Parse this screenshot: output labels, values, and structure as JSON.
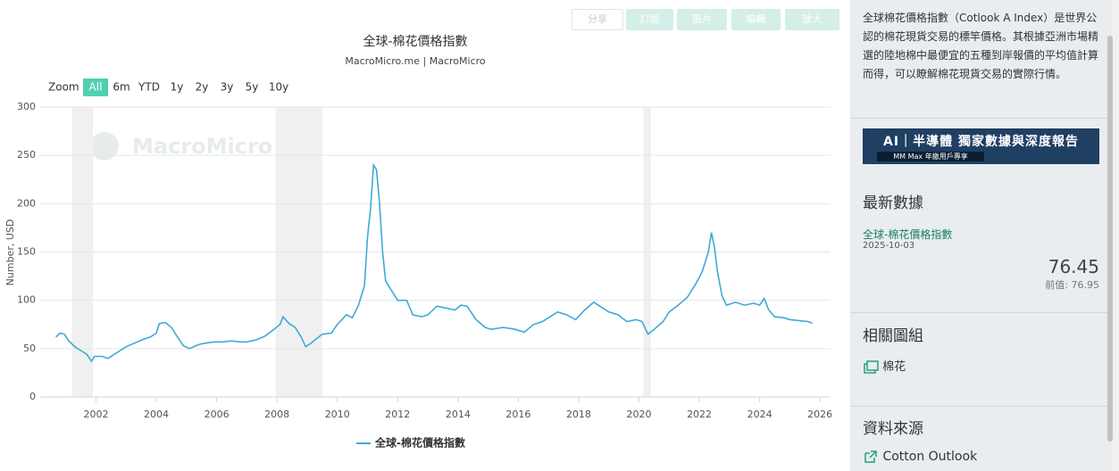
{
  "toolbar": [
    "分享",
    "訂閱",
    "圖片",
    "編輯",
    "放大"
  ],
  "chart_data": {
    "type": "line",
    "title": "全球-棉花價格指數",
    "subtitle": "MacroMicro.me | MacroMicro",
    "watermark": "MacroMicro",
    "range_selector": {
      "label": "Zoom",
      "options": [
        "All",
        "6m",
        "YTD",
        "1y",
        "2y",
        "3y",
        "5y",
        "10y"
      ],
      "active": 0
    },
    "y_label": "Number, USD",
    "xlim": [
      2000.15,
      2026.35
    ],
    "xticks": [
      2002,
      2004,
      2006,
      2008,
      2010,
      2012,
      2014,
      2016,
      2018,
      2020,
      2022,
      2024,
      2026
    ],
    "ylim": [
      0,
      300
    ],
    "yticks": [
      0,
      50,
      100,
      150,
      200,
      250,
      300
    ],
    "grid": true,
    "shaded_ranges": [
      [
        2001.2,
        2001.9
      ],
      [
        2007.95,
        2009.5
      ],
      [
        2020.15,
        2020.4
      ]
    ],
    "x": [
      2000.67,
      2000.8,
      2000.95,
      2001.1,
      2001.3,
      2001.5,
      2001.7,
      2001.85,
      2001.95,
      2002.2,
      2002.4,
      2002.6,
      2002.8,
      2003.0,
      2003.3,
      2003.6,
      2003.8,
      2004.0,
      2004.1,
      2004.3,
      2004.5,
      2004.7,
      2004.9,
      2005.1,
      2005.3,
      2005.5,
      2005.7,
      2005.9,
      2006.2,
      2006.5,
      2006.8,
      2007.0,
      2007.3,
      2007.6,
      2007.9,
      2008.1,
      2008.2,
      2008.4,
      2008.6,
      2008.8,
      2008.95,
      2009.1,
      2009.3,
      2009.5,
      2009.8,
      2010.0,
      2010.3,
      2010.5,
      2010.7,
      2010.9,
      2011.0,
      2011.1,
      2011.2,
      2011.3,
      2011.4,
      2011.5,
      2011.6,
      2011.8,
      2012.0,
      2012.3,
      2012.5,
      2012.8,
      2013.0,
      2013.3,
      2013.6,
      2013.9,
      2014.1,
      2014.3,
      2014.6,
      2014.9,
      2015.1,
      2015.5,
      2015.9,
      2016.2,
      2016.5,
      2016.8,
      2017.0,
      2017.3,
      2017.6,
      2017.9,
      2018.2,
      2018.5,
      2018.8,
      2019.0,
      2019.3,
      2019.6,
      2019.9,
      2020.1,
      2020.3,
      2020.5,
      2020.8,
      2021.0,
      2021.3,
      2021.6,
      2021.9,
      2022.1,
      2022.3,
      2022.4,
      2022.5,
      2022.6,
      2022.75,
      2022.9,
      2023.2,
      2023.5,
      2023.8,
      2024.0,
      2024.15,
      2024.3,
      2024.5,
      2024.8,
      2025.0,
      2025.3,
      2025.6,
      2025.75
    ],
    "series": [
      {
        "name": "全球-棉花價格指數",
        "color": "#3fa9d6",
        "values": [
          62,
          66,
          65,
          58,
          52,
          48,
          44,
          37,
          42,
          42,
          40,
          44,
          48,
          52,
          56,
          60,
          62,
          66,
          76,
          77,
          72,
          62,
          53,
          50,
          53,
          55,
          56,
          57,
          57,
          58,
          57,
          57,
          59,
          63,
          70,
          75,
          83,
          76,
          72,
          62,
          52,
          55,
          60,
          65,
          66,
          75,
          85,
          82,
          95,
          115,
          165,
          195,
          240,
          235,
          200,
          150,
          120,
          110,
          100,
          100,
          85,
          83,
          85,
          94,
          92,
          90,
          95,
          94,
          80,
          72,
          70,
          72,
          70,
          67,
          75,
          78,
          82,
          88,
          85,
          80,
          90,
          98,
          92,
          88,
          85,
          78,
          80,
          78,
          65,
          70,
          78,
          88,
          95,
          103,
          118,
          130,
          150,
          170,
          155,
          130,
          105,
          95,
          98,
          95,
          97,
          95,
          102,
          90,
          83,
          82,
          80,
          79,
          78,
          76.45
        ]
      }
    ]
  },
  "sidebar": {
    "description": "全球棉花價格指數（Cotlook A Index）是世界公認的棉花現貨交易的標竿價格。其根據亞洲市場精選的陸地棉中最便宜的五種到岸報價的平均值計算而得，可以瞭解棉花現貨交易的實際行情。",
    "banner_title": "AI｜半導體 獨家數據與深度報告",
    "banner_sub": "MM Max 年繳用戶專享",
    "latest_heading": "最新數據",
    "latest_name": "全球-棉花價格指數",
    "latest_date": "2025-10-03",
    "latest_value": 76.45,
    "previous_label": "前值:",
    "previous_value": 76.95,
    "related_heading": "相關圖組",
    "related_item": "棉花",
    "source_heading": "資料來源",
    "source_item": "Cotton Outlook"
  }
}
